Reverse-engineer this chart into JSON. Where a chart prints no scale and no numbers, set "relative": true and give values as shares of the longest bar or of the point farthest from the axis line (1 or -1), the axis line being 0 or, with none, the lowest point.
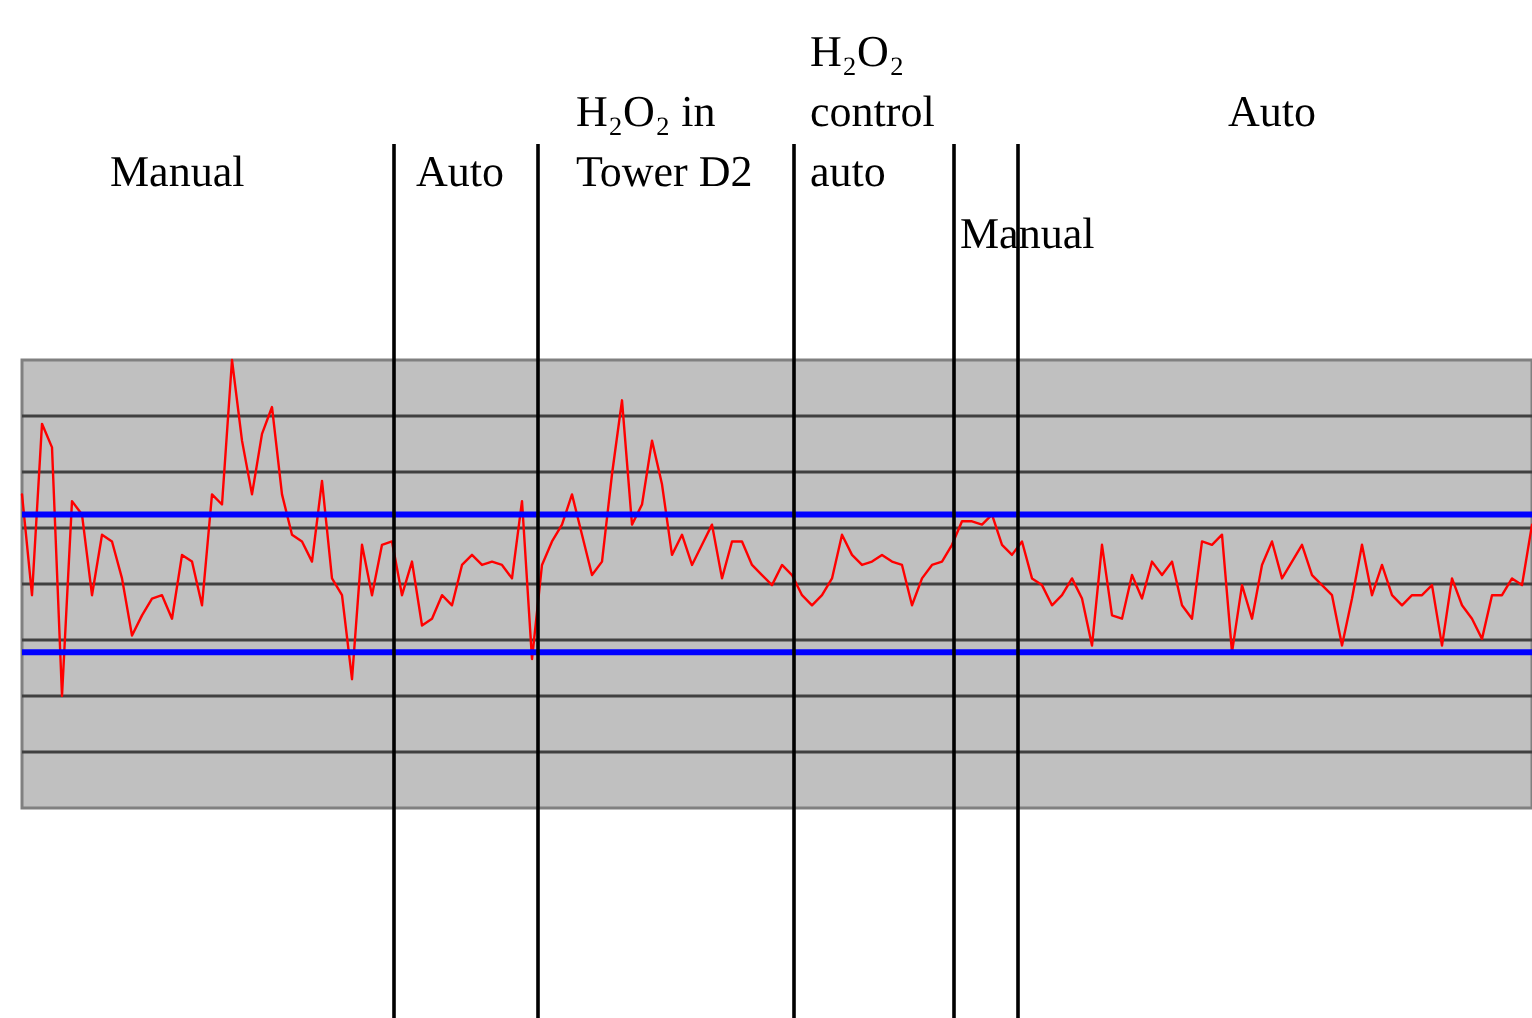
{
  "chart_data": {
    "type": "line",
    "relative": true,
    "grid": "y",
    "marker": "none",
    "line_style": "solid",
    "categories": [
      null,
      null,
      null,
      null,
      null,
      null,
      null,
      null,
      null,
      null,
      null,
      null,
      null,
      null,
      null,
      null,
      null,
      null,
      null,
      null,
      null,
      null,
      null,
      null,
      null,
      null,
      null,
      null,
      null,
      null,
      null,
      null,
      null,
      null,
      null,
      null,
      null,
      null,
      null,
      null,
      null,
      null,
      null,
      null,
      null,
      null,
      null,
      null,
      null,
      null,
      null,
      null,
      null,
      null,
      null,
      null,
      null,
      null,
      null,
      null,
      null,
      null,
      null,
      null,
      null,
      null,
      null,
      null,
      null,
      null,
      null,
      null,
      null,
      null,
      null,
      null,
      null,
      null,
      null,
      null,
      null,
      null,
      null,
      null,
      null,
      null,
      null,
      null,
      null,
      null,
      null,
      null,
      null,
      null,
      null,
      null,
      null,
      null,
      null,
      null,
      null,
      null,
      null,
      null,
      null,
      null,
      null,
      null,
      null,
      null,
      null,
      null,
      null,
      null,
      null,
      null,
      null,
      null,
      null,
      null,
      null,
      null,
      null,
      null,
      null,
      null,
      null,
      null,
      null,
      null,
      null,
      null,
      null,
      null,
      null,
      null,
      null,
      null,
      null,
      null,
      null,
      null,
      null,
      null,
      null,
      null,
      null,
      null,
      null,
      null,
      null,
      null
    ],
    "series": [
      {
        "color": "#ff0000",
        "values": [
          0.6,
          0.3,
          0.81,
          0.74,
          0,
          0.58,
          0.54,
          0.3,
          0.48,
          0.46,
          0.35,
          0.18,
          0.24,
          0.29,
          0.3,
          0.23,
          0.42,
          0.4,
          0.27,
          0.6,
          0.57,
          1,
          0.76,
          0.6,
          0.78,
          0.86,
          0.6,
          0.48,
          0.46,
          0.4,
          0.64,
          0.35,
          0.3,
          0.05,
          0.45,
          0.3,
          0.45,
          0.46,
          0.3,
          0.4,
          0.21,
          0.23,
          0.3,
          0.27,
          0.39,
          0.42,
          0.39,
          0.4,
          0.39,
          0.35,
          0.58,
          0.11,
          0.39,
          0.46,
          0.51,
          0.6,
          0.48,
          0.36,
          0.4,
          0.66,
          0.88,
          0.51,
          0.57,
          0.76,
          0.63,
          0.42,
          0.48,
          0.39,
          0.45,
          0.51,
          0.35,
          0.46,
          0.46,
          0.39,
          0.36,
          0.33,
          0.39,
          0.36,
          0.3,
          0.27,
          0.3,
          0.35,
          0.48,
          0.42,
          0.39,
          0.4,
          0.42,
          0.4,
          0.39,
          0.27,
          0.35,
          0.39,
          0.4,
          0.45,
          0.52,
          0.52,
          0.51,
          0.54,
          0.45,
          0.42,
          0.46,
          0.35,
          0.33,
          0.27,
          0.3,
          0.35,
          0.29,
          0.15,
          0.45,
          0.24,
          0.23,
          0.36,
          0.29,
          0.4,
          0.36,
          0.4,
          0.27,
          0.23,
          0.46,
          0.45,
          0.48,
          0.13,
          0.33,
          0.23,
          0.39,
          0.46,
          0.35,
          0.4,
          0.45,
          0.36,
          0.33,
          0.3,
          0.15,
          0.29,
          0.45,
          0.3,
          0.39,
          0.3,
          0.27,
          0.3,
          0.3,
          0.33,
          0.15,
          0.35,
          0.27,
          0.23,
          0.17,
          0.3,
          0.3,
          0.35,
          0.33,
          0.51
        ]
      }
    ],
    "ref_lines": [
      {
        "axis": "y",
        "value": 0.54,
        "color": "#0000ff"
      },
      {
        "axis": "y",
        "value": 0.13,
        "color": "#0000ff"
      }
    ],
    "annotations": [
      "Manual",
      "Auto",
      "H₂O₂ in Tower D2",
      "H₂O₂ control auto",
      "Manual",
      "Auto"
    ]
  }
}
